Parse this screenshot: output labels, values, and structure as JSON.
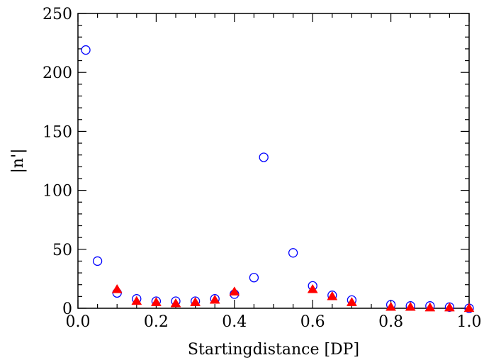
{
  "chart_data": {
    "type": "scatter",
    "xlabel": "Startingdistance [DP]",
    "ylabel": "|n'|",
    "xlim": [
      0.0,
      1.0
    ],
    "ylim": [
      0,
      250
    ],
    "x_ticks": [
      "0.0",
      "0.2",
      "0.4",
      "0.6",
      "0.8",
      "1.0"
    ],
    "y_ticks": [
      "0",
      "50",
      "100",
      "150",
      "200",
      "250"
    ],
    "grid": false,
    "series": [
      {
        "marker": "open-circle",
        "color": "#0000ff",
        "points": [
          [
            0.02,
            219
          ],
          [
            0.05,
            40
          ],
          [
            0.1,
            13
          ],
          [
            0.15,
            8
          ],
          [
            0.2,
            6
          ],
          [
            0.25,
            6
          ],
          [
            0.3,
            6
          ],
          [
            0.35,
            8
          ],
          [
            0.4,
            12
          ],
          [
            0.45,
            26
          ],
          [
            0.475,
            128
          ],
          [
            0.55,
            47
          ],
          [
            0.6,
            19
          ],
          [
            0.65,
            11
          ],
          [
            0.7,
            7
          ],
          [
            0.8,
            3
          ],
          [
            0.85,
            2
          ],
          [
            0.9,
            2
          ],
          [
            0.95,
            1
          ],
          [
            1.0,
            0
          ]
        ]
      },
      {
        "marker": "filled-triangle",
        "color": "#ff0000",
        "points": [
          [
            0.1,
            16
          ],
          [
            0.15,
            6
          ],
          [
            0.2,
            5
          ],
          [
            0.25,
            4
          ],
          [
            0.3,
            5
          ],
          [
            0.35,
            7
          ],
          [
            0.4,
            14
          ],
          [
            0.6,
            16
          ],
          [
            0.65,
            10
          ],
          [
            0.7,
            5
          ],
          [
            0.8,
            1
          ],
          [
            0.85,
            1
          ],
          [
            0.9,
            0.5
          ],
          [
            0.95,
            0.5
          ],
          [
            1.0,
            0
          ]
        ]
      }
    ]
  }
}
